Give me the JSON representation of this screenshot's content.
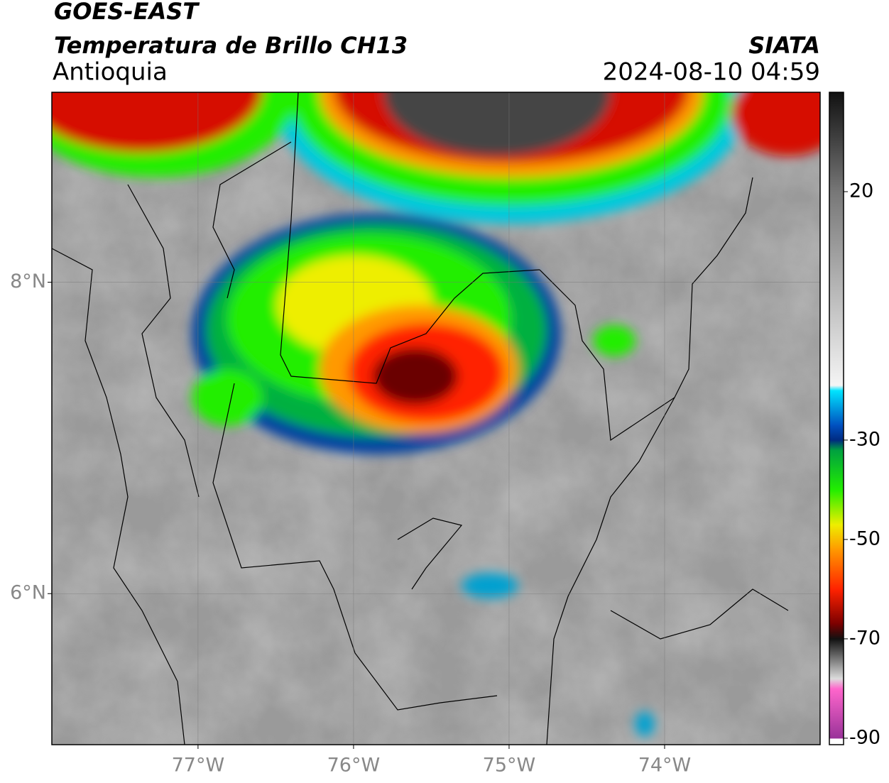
{
  "header": {
    "satellite": "GOES-EAST",
    "product": "Temperatura de Brillo CH13",
    "region": "Antioquia",
    "source": "SIATA",
    "timestamp": "2024-08-10 04:59"
  },
  "map": {
    "lonlim": [
      -77.94,
      -73.0
    ],
    "latlim": [
      5.03,
      9.22
    ],
    "lonticks": [
      {
        "value": -77,
        "label": "77°W"
      },
      {
        "value": -76,
        "label": "76°W"
      },
      {
        "value": -75,
        "label": "75°W"
      },
      {
        "value": -74,
        "label": "74°W"
      }
    ],
    "latticks": [
      {
        "value": 8,
        "label": "8°N"
      },
      {
        "value": 6,
        "label": "6°N"
      }
    ],
    "grid": true
  },
  "colorbar": {
    "lim": [
      -91.3,
      40
    ],
    "ticks": [
      20,
      -30,
      -50,
      -70,
      -90
    ],
    "stops": [
      [
        40,
        "#111111"
      ],
      [
        20,
        "#777777"
      ],
      [
        -19,
        "#f5f5f5"
      ],
      [
        -20,
        "#00e5ff"
      ],
      [
        -27,
        "#0050c0"
      ],
      [
        -30,
        "#002a80"
      ],
      [
        -32,
        "#00a040"
      ],
      [
        -40,
        "#22ee00"
      ],
      [
        -47,
        "#eeee00"
      ],
      [
        -52,
        "#ff9900"
      ],
      [
        -60,
        "#ff2200"
      ],
      [
        -67,
        "#7a0000"
      ],
      [
        -70,
        "#111111"
      ],
      [
        -78,
        "#dddddd"
      ],
      [
        -80,
        "#ff66cc"
      ],
      [
        -90,
        "#993399"
      ]
    ]
  }
}
